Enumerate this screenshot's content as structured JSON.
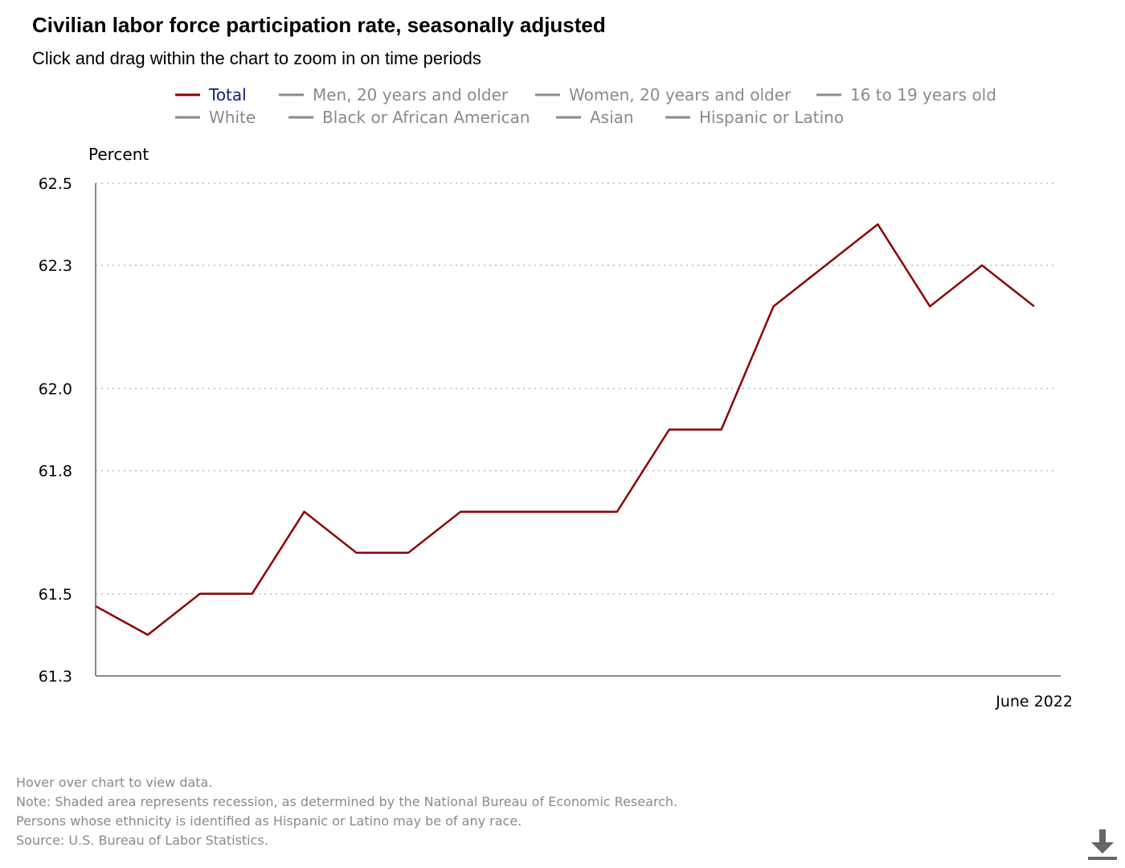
{
  "title": "Civilian labor force participation rate, seasonally adjusted",
  "subtitle": "Click and drag within the chart to zoom in on time periods",
  "colors": {
    "active_series": "#8b0000",
    "inactive_series": "#8a8a8a",
    "grid": "#bbbbbb",
    "axis": "#888888"
  },
  "legend": [
    {
      "label": "Total",
      "active": true
    },
    {
      "label": "Men, 20 years and older",
      "active": false
    },
    {
      "label": "Women, 20 years and older",
      "active": false
    },
    {
      "label": "16 to 19 years old",
      "active": false
    },
    {
      "label": "White",
      "active": false
    },
    {
      "label": "Black or African American",
      "active": false
    },
    {
      "label": "Asian",
      "active": false
    },
    {
      "label": "Hispanic or Latino",
      "active": false
    }
  ],
  "chart_data": {
    "type": "line",
    "title": "Civilian labor force participation rate, seasonally adjusted",
    "ylabel": "Percent",
    "xlabel": "",
    "ylim": [
      61.3,
      62.5
    ],
    "yticks": [
      61.3,
      61.5,
      61.8,
      62.0,
      62.3,
      62.5
    ],
    "x_end_label": "June 2022",
    "grid": true,
    "series": [
      {
        "name": "Total",
        "values": [
          61.47,
          61.4,
          61.5,
          61.5,
          61.7,
          61.6,
          61.6,
          61.7,
          61.7,
          61.7,
          61.7,
          61.9,
          61.9,
          62.2,
          62.3,
          62.4,
          62.2,
          62.3,
          62.2
        ]
      }
    ]
  },
  "notes": [
    "Hover over chart to view data.",
    "Note: Shaded area represents recession, as determined by the National Bureau of Economic Research.",
    "Persons whose ethnicity is identified as Hispanic or Latino may be of any race.",
    "Source: U.S. Bureau of Labor Statistics."
  ],
  "download_icon": "download-icon"
}
